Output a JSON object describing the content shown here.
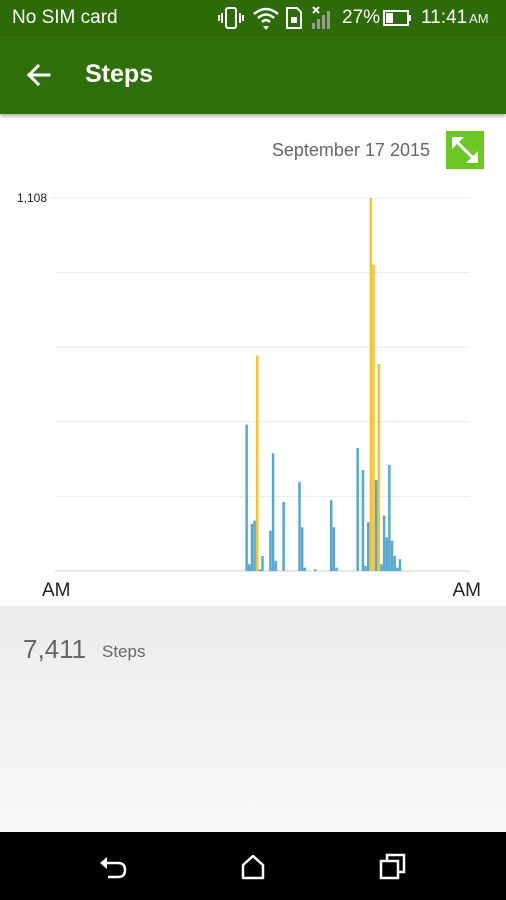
{
  "status_bar": {
    "carrier": "No SIM card",
    "battery": "27%",
    "time": "11:41",
    "ampm": "AM",
    "icons": [
      "vibrate-icon",
      "wifi-icon",
      "sim-icon",
      "signal-icon",
      "battery-icon"
    ]
  },
  "app_bar": {
    "title": "Steps",
    "back_icon": "arrow-back-icon",
    "color": "#2f6f0a"
  },
  "chart": {
    "date": "September 17 2015",
    "expand_icon": "expand-icon",
    "expand_color": "#6cc626"
  },
  "chart_data": {
    "type": "bar",
    "title": "",
    "ymax_label": "1,108",
    "ylim": [
      0,
      1108
    ],
    "x_start_label": "AM",
    "x_end_label": "AM",
    "grid": true,
    "colors": {
      "normal": "#56a8d1",
      "high": "#f5c32c"
    },
    "values": [
      0,
      0,
      0,
      0,
      0,
      0,
      0,
      0,
      0,
      0,
      0,
      0,
      0,
      0,
      0,
      0,
      0,
      0,
      0,
      0,
      0,
      0,
      0,
      0,
      0,
      0,
      0,
      0,
      0,
      0,
      0,
      0,
      0,
      0,
      0,
      0,
      0,
      0,
      0,
      0,
      0,
      0,
      0,
      0,
      0,
      0,
      0,
      0,
      0,
      0,
      0,
      0,
      0,
      0,
      0,
      0,
      0,
      0,
      0,
      0,
      0,
      0,
      0,
      0,
      0,
      0,
      0,
      0,
      0,
      0,
      0,
      0,
      435,
      20,
      140,
      150,
      640,
      5,
      45,
      0,
      0,
      120,
      350,
      30,
      0,
      0,
      205,
      0,
      0,
      0,
      0,
      0,
      265,
      130,
      10,
      0,
      0,
      0,
      5,
      0,
      0,
      0,
      0,
      0,
      210,
      130,
      10,
      0,
      0,
      0,
      0,
      0,
      0,
      0,
      365,
      0,
      300,
      15,
      145,
      1108,
      910,
      270,
      615,
      20,
      165,
      100,
      315,
      90,
      45,
      10,
      35,
      0,
      0,
      0,
      0,
      0,
      0,
      0,
      0,
      0,
      0,
      0,
      0,
      0,
      0,
      0,
      0,
      0,
      0,
      0,
      0,
      0,
      0,
      0,
      0,
      0,
      0
    ]
  },
  "summary": {
    "total": "7,411",
    "unit": "Steps"
  },
  "nav": {
    "back_icon": "nav-back-icon",
    "home_icon": "nav-home-icon",
    "recents_icon": "nav-recents-icon"
  }
}
